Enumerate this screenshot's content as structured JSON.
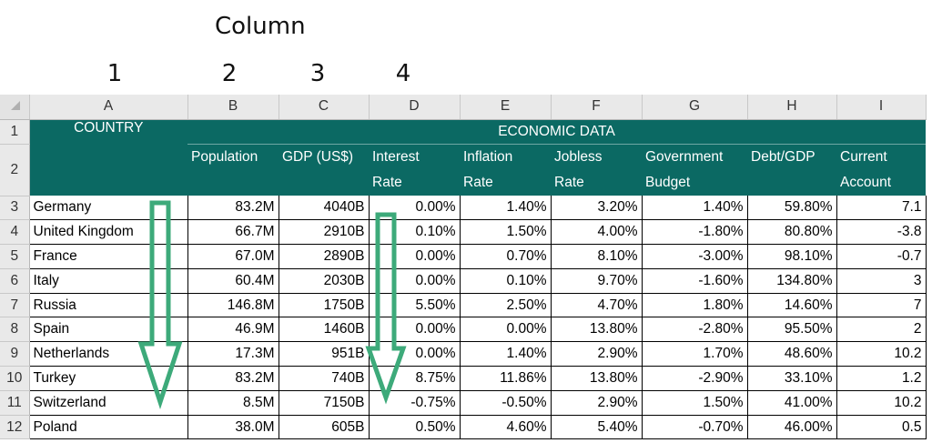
{
  "annotations": {
    "title": "Column",
    "numbers": [
      "1",
      "2",
      "3",
      "4"
    ]
  },
  "column_letters": [
    "A",
    "B",
    "C",
    "D",
    "E",
    "F",
    "G",
    "H",
    "I"
  ],
  "header": {
    "country": "COUNTRY",
    "economic_data": "ECONOMIC DATA",
    "subheaders": [
      [
        "Population"
      ],
      [
        "GDP (US$)"
      ],
      [
        "Interest",
        "Rate"
      ],
      [
        "Inflation",
        "Rate"
      ],
      [
        "Jobless",
        "Rate"
      ],
      [
        "Government",
        "Budget"
      ],
      [
        "Debt/GDP"
      ],
      [
        "Current",
        "Account"
      ]
    ]
  },
  "rows": [
    {
      "n": "3",
      "cells": [
        "Germany",
        "83.2M",
        "4040B",
        "0.00%",
        "1.40%",
        "3.20%",
        "1.40%",
        "59.80%",
        "7.1"
      ]
    },
    {
      "n": "4",
      "cells": [
        "United Kingdom",
        "66.7M",
        "2910B",
        "0.10%",
        "1.50%",
        "4.00%",
        "-1.80%",
        "80.80%",
        "-3.8"
      ]
    },
    {
      "n": "5",
      "cells": [
        "France",
        "67.0M",
        "2890B",
        "0.00%",
        "0.70%",
        "8.10%",
        "-3.00%",
        "98.10%",
        "-0.7"
      ]
    },
    {
      "n": "6",
      "cells": [
        "Italy",
        "60.4M",
        "2030B",
        "0.00%",
        "0.10%",
        "9.70%",
        "-1.60%",
        "134.80%",
        "3"
      ]
    },
    {
      "n": "7",
      "cells": [
        "Russia",
        "146.8M",
        "1750B",
        "5.50%",
        "2.50%",
        "4.70%",
        "1.80%",
        "14.60%",
        "7"
      ]
    },
    {
      "n": "8",
      "cells": [
        "Spain",
        "46.9M",
        "1460B",
        "0.00%",
        "0.00%",
        "13.80%",
        "-2.80%",
        "95.50%",
        "2"
      ]
    },
    {
      "n": "9",
      "cells": [
        "Netherlands",
        "17.3M",
        "951B",
        "0.00%",
        "1.40%",
        "2.90%",
        "1.70%",
        "48.60%",
        "10.2"
      ]
    },
    {
      "n": "10",
      "cells": [
        "Turkey",
        "83.2M",
        "740B",
        "8.75%",
        "11.86%",
        "13.80%",
        "-2.90%",
        "33.10%",
        "1.2"
      ]
    },
    {
      "n": "11",
      "cells": [
        "Switzerland",
        "8.5M",
        "7150B",
        "-0.75%",
        "-0.50%",
        "2.90%",
        "1.50%",
        "41.00%",
        "10.2"
      ]
    },
    {
      "n": "12",
      "cells": [
        "Poland",
        "38.0M",
        "605B",
        "0.50%",
        "4.60%",
        "5.40%",
        "-0.70%",
        "46.00%",
        "0.5"
      ]
    }
  ],
  "colors": {
    "header_fill": "#0b6963",
    "arrow_color": "#3daa7a"
  }
}
